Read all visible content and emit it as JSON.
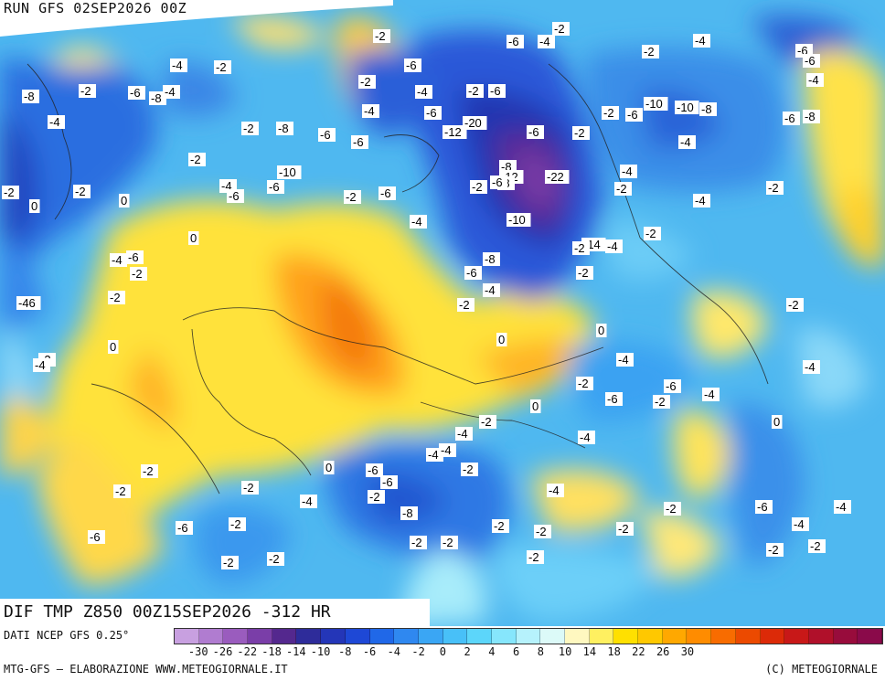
{
  "header": {
    "run_label": "RUN GFS 02SEP2026 00Z"
  },
  "map": {
    "title": "DIF TMP Z850 00Z15SEP2026 -312 HR",
    "contour_labels": [
      "-2",
      "-6",
      "-4",
      "-2",
      "-4",
      "-6",
      "-6",
      "-4",
      "-2",
      "-6",
      "-8",
      "-2",
      "-6",
      "-8",
      "-4",
      "-2",
      "-4",
      "-2",
      "-6",
      "-6",
      "-4",
      "-2",
      "-6",
      "-10",
      "-10",
      "-8",
      "-6",
      "-8",
      "-4",
      "-2",
      "-6",
      "-2",
      "-20",
      "-12",
      "-6",
      "-4",
      "-2",
      "-8",
      "-6",
      "-4",
      "-2",
      "-10",
      "-6",
      "-4",
      "-2",
      "-6",
      "-6",
      "-4",
      "-2",
      "-2",
      "0",
      "0",
      "-2",
      "-8",
      "-12",
      "-22",
      "-8",
      "-6",
      "-4",
      "-10",
      "0",
      "-4",
      "-2",
      "-2",
      "0",
      "-6",
      "-4",
      "-2",
      "-14",
      "-4",
      "-8",
      "-6",
      "-2",
      "-46",
      "-2",
      "-2",
      "-2",
      "-2",
      "0",
      "-4",
      "-2",
      "0",
      "-2",
      "-4",
      "-4",
      "-6",
      "-4",
      "0",
      "-2",
      "-4",
      "0",
      "-2",
      "-6",
      "-4",
      "-2",
      "-4",
      "-4",
      "-4",
      "0",
      "-2",
      "0",
      "-2",
      "-6",
      "-6",
      "-2",
      "-2",
      "-8",
      "-4",
      "-2",
      "-6",
      "-2",
      "-4",
      "-6",
      "-6",
      "-2",
      "-2",
      "-2",
      "-2",
      "-4",
      "-4",
      "-2",
      "-2",
      "-2",
      "-2",
      "-2",
      "-2",
      "-2"
    ]
  },
  "source_text": "DATI NCEP GFS 0.25°",
  "footer": {
    "left": "MTG-GFS – ELABORAZIONE WWW.METEOGIORNALE.IT",
    "right": "(C) METEOGIORNALE"
  },
  "legend": {
    "colors": [
      "#c8a0e0",
      "#b07cd0",
      "#9a5cbe",
      "#7a3ea8",
      "#54288e",
      "#2e2c9a",
      "#2436b8",
      "#1e48d6",
      "#2068e8",
      "#2f88f0",
      "#3aa6f4",
      "#48c0f8",
      "#5cd6fa",
      "#86e6fc",
      "#b6f2fc",
      "#dcfaf8",
      "#fff8c0",
      "#fff060",
      "#ffe000",
      "#ffc800",
      "#ffa800",
      "#ff8c00",
      "#f86c00",
      "#ec4a00",
      "#dc2a08",
      "#c81818",
      "#b0102a",
      "#980c3c",
      "#8a0a4a"
    ],
    "ticks": [
      "-30",
      "-26",
      "-22",
      "-18",
      "-14",
      "-10",
      "-8",
      "-6",
      "-4",
      "-2",
      "0",
      "2",
      "4",
      "6",
      "8",
      "10",
      "14",
      "18",
      "22",
      "26",
      "30"
    ]
  }
}
